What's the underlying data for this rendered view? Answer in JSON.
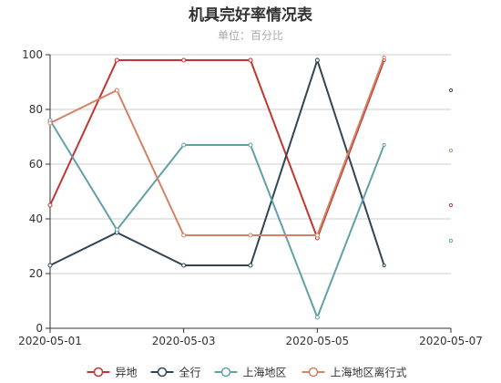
{
  "chart_data": {
    "type": "line",
    "title": "机具完好率情况表",
    "subtitle": "单位：百分比",
    "x": [
      "2020-05-01",
      "2020-05-02",
      "2020-05-03",
      "2020-05-04",
      "2020-05-05",
      "2020-05-06"
    ],
    "xticks": [
      "2020-05-01",
      "2020-05-03",
      "2020-05-05",
      "2020-05-07"
    ],
    "xlim": [
      "2020-05-01",
      "2020-05-07"
    ],
    "ylim": [
      0,
      100
    ],
    "yticks": [
      0,
      20,
      40,
      60,
      80,
      100
    ],
    "grid": true,
    "legend_position": "bottom",
    "series": [
      {
        "name": "异地",
        "color": "#c23531",
        "values": [
          45,
          98,
          98,
          98,
          33,
          98
        ]
      },
      {
        "name": "全行",
        "color": "#2f4554",
        "values": [
          23,
          35,
          23,
          23,
          98,
          23
        ]
      },
      {
        "name": "上海地区",
        "color": "#61a0a8",
        "values": [
          76,
          36,
          67,
          67,
          4,
          67
        ]
      },
      {
        "name": "上海地区离行式",
        "color": "#d48265",
        "values": [
          75,
          87,
          34,
          34,
          34,
          99
        ]
      }
    ],
    "stray_points": [
      {
        "series": 0,
        "x": "2020-05-07",
        "y": 45
      },
      {
        "series": 1,
        "x": "2020-05-07",
        "y": 87
      },
      {
        "series": 2,
        "x": "2020-05-07",
        "y": 32
      },
      {
        "series": 3,
        "x": "2020-05-07",
        "y": 65
      }
    ]
  }
}
